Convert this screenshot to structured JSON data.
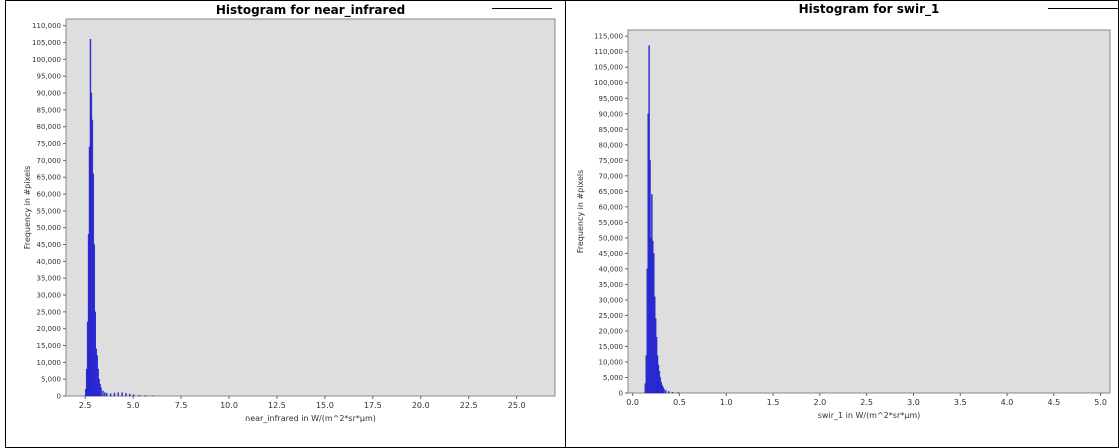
{
  "colors": {
    "plot_bg": "#dedede",
    "bar": "#3232e6",
    "bar_edge": "#1f1fb8",
    "grid": "#ffffff",
    "frame": "#888888"
  },
  "chart_data": [
    {
      "type": "bar",
      "title": "Histogram for near_infrared",
      "xlabel": "near_infrared in W/(m^2*sr*µm)",
      "ylabel": "Frequency in #pixels",
      "xlim": [
        1.5,
        27.0
      ],
      "ylim": [
        0,
        112000
      ],
      "xticks": [
        "2.5",
        "5.0",
        "7.5",
        "10.0",
        "12.5",
        "15.0",
        "17.5",
        "20.0",
        "22.5",
        "25.0"
      ],
      "xtick_values": [
        2.5,
        5.0,
        7.5,
        10.0,
        12.5,
        15.0,
        17.5,
        20.0,
        22.5,
        25.0
      ],
      "yticks": [
        "0",
        "5,000",
        "10,000",
        "15,000",
        "20,000",
        "25,000",
        "30,000",
        "35,000",
        "40,000",
        "45,000",
        "50,000",
        "55,000",
        "60,000",
        "65,000",
        "70,000",
        "75,000",
        "80,000",
        "85,000",
        "90,000",
        "95,000",
        "100,000",
        "105,000",
        "110,000"
      ],
      "ytick_values": [
        0,
        5000,
        10000,
        15000,
        20000,
        25000,
        30000,
        35000,
        40000,
        45000,
        50000,
        55000,
        60000,
        65000,
        70000,
        75000,
        80000,
        85000,
        90000,
        95000,
        100000,
        105000,
        110000
      ],
      "grid": false,
      "bin_width": 0.05,
      "bins": [
        [
          2.5,
          2000
        ],
        [
          2.55,
          8000
        ],
        [
          2.6,
          22000
        ],
        [
          2.65,
          48000
        ],
        [
          2.7,
          74000
        ],
        [
          2.75,
          106000
        ],
        [
          2.8,
          90000
        ],
        [
          2.85,
          82000
        ],
        [
          2.9,
          66000
        ],
        [
          2.95,
          45000
        ],
        [
          3.0,
          25000
        ],
        [
          3.05,
          14000
        ],
        [
          3.1,
          12000
        ],
        [
          3.15,
          8000
        ],
        [
          3.2,
          5000
        ],
        [
          3.25,
          3500
        ],
        [
          3.3,
          2500
        ],
        [
          3.4,
          1500
        ],
        [
          3.5,
          1000
        ],
        [
          3.6,
          800
        ],
        [
          3.8,
          700
        ],
        [
          4.0,
          900
        ],
        [
          4.2,
          1000
        ],
        [
          4.4,
          1000
        ],
        [
          4.6,
          800
        ],
        [
          4.8,
          600
        ],
        [
          5.0,
          400
        ],
        [
          5.3,
          250
        ],
        [
          5.6,
          150
        ],
        [
          6.0,
          80
        ]
      ]
    },
    {
      "type": "bar",
      "title": "Histogram for swir_1",
      "xlabel": "swir_1 in W/(m^2*sr*µm)",
      "ylabel": "Frequency in #pixels",
      "xlim": [
        -0.05,
        5.1
      ],
      "ylim": [
        0,
        117000
      ],
      "xticks": [
        "0.0",
        "0.5",
        "1.0",
        "1.5",
        "2.0",
        "2.5",
        "3.0",
        "3.5",
        "4.0",
        "4.5",
        "5.0"
      ],
      "xtick_values": [
        0.0,
        0.5,
        1.0,
        1.5,
        2.0,
        2.5,
        3.0,
        3.5,
        4.0,
        4.5,
        5.0
      ],
      "yticks": [
        "0",
        "5,000",
        "10,000",
        "15,000",
        "20,000",
        "25,000",
        "30,000",
        "35,000",
        "40,000",
        "45,000",
        "50,000",
        "55,000",
        "60,000",
        "65,000",
        "70,000",
        "75,000",
        "80,000",
        "85,000",
        "90,000",
        "95,000",
        "100,000",
        "105,000",
        "110,000",
        "115,000"
      ],
      "ytick_values": [
        0,
        5000,
        10000,
        15000,
        20000,
        25000,
        30000,
        35000,
        40000,
        45000,
        50000,
        55000,
        60000,
        65000,
        70000,
        75000,
        80000,
        85000,
        90000,
        95000,
        100000,
        105000,
        110000,
        115000
      ],
      "grid": false,
      "bin_width": 0.01,
      "bins": [
        [
          0.13,
          3000
        ],
        [
          0.14,
          12000
        ],
        [
          0.15,
          40000
        ],
        [
          0.16,
          90000
        ],
        [
          0.17,
          112000
        ],
        [
          0.18,
          75000
        ],
        [
          0.19,
          50000
        ],
        [
          0.2,
          64000
        ],
        [
          0.21,
          49000
        ],
        [
          0.22,
          45000
        ],
        [
          0.23,
          31000
        ],
        [
          0.24,
          24000
        ],
        [
          0.25,
          18000
        ],
        [
          0.26,
          12000
        ],
        [
          0.27,
          9000
        ],
        [
          0.28,
          7000
        ],
        [
          0.29,
          5000
        ],
        [
          0.3,
          3500
        ],
        [
          0.31,
          2500
        ],
        [
          0.32,
          1800
        ],
        [
          0.33,
          1200
        ],
        [
          0.35,
          800
        ],
        [
          0.38,
          500
        ],
        [
          0.42,
          300
        ],
        [
          0.48,
          150
        ]
      ]
    }
  ]
}
